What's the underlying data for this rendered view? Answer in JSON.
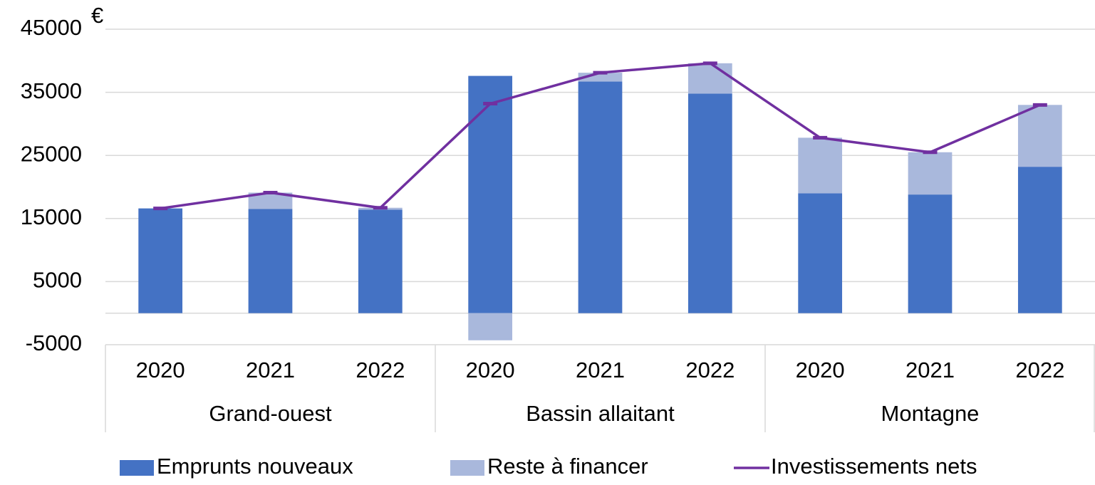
{
  "chart_data": {
    "type": "bar",
    "y_unit": "€",
    "categories": [
      "2020",
      "2021",
      "2022",
      "2020",
      "2021",
      "2022",
      "2020",
      "2021",
      "2022"
    ],
    "groups": [
      "Grand-ouest",
      "Bassin allaitant",
      "Montagne"
    ],
    "series": [
      {
        "name": "Emprunts nouveaux",
        "type": "bar",
        "color": "#4472c4",
        "values": [
          16600,
          16500,
          16400,
          37600,
          36700,
          34800,
          19000,
          18800,
          23200
        ]
      },
      {
        "name": "Reste à financer",
        "type": "bar",
        "color": "#a9b8dc",
        "values": [
          0,
          2600,
          300,
          -4300,
          1400,
          4800,
          8800,
          6700,
          9800
        ]
      },
      {
        "name": "Investissements nets",
        "type": "line",
        "color": "#7030a0",
        "values": [
          16600,
          19100,
          16700,
          33200,
          38100,
          39600,
          27800,
          25500,
          33000
        ]
      }
    ],
    "ylim": [
      -5000,
      45000
    ],
    "yticks": [
      -5000,
      5000,
      15000,
      25000,
      35000,
      45000
    ],
    "grid": true,
    "stacked": true,
    "legend": "bottom"
  }
}
